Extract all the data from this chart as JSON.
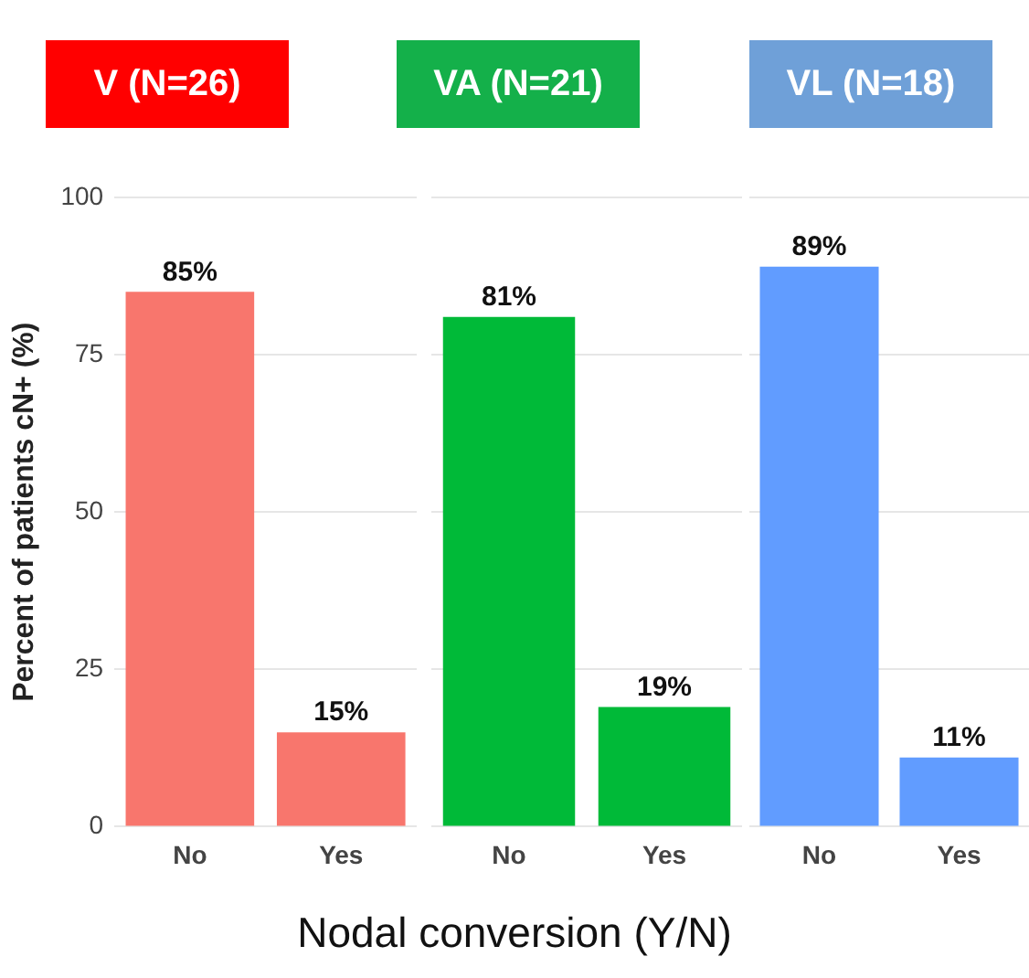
{
  "chart_data": [
    {
      "type": "bar",
      "title": "V (N=26)",
      "ylabel": "Percent of patients cN+ (%)",
      "categories": [
        "No",
        "Yes"
      ],
      "values": [
        85,
        15
      ],
      "value_labels": [
        "85%",
        "15%"
      ],
      "color": "#f8766d",
      "ylim": [
        0,
        100
      ],
      "yticks": [
        0,
        25,
        50,
        75,
        100
      ],
      "grid": "y"
    },
    {
      "type": "bar",
      "title": "VA (N=21)",
      "xlabel": "Nodal conversion (Y/N)",
      "categories": [
        "No",
        "Yes"
      ],
      "values": [
        81,
        19
      ],
      "value_labels": [
        "81%",
        "19%"
      ],
      "color": "#00ba38",
      "ylim": [
        0,
        100
      ],
      "yticks": [
        0,
        25,
        50,
        75,
        100
      ],
      "grid": "y",
      "tick_labels": "x"
    },
    {
      "type": "bar",
      "title": "VL (N=18)",
      "categories": [
        "No",
        "Yes"
      ],
      "values": [
        89,
        11
      ],
      "value_labels": [
        "89%",
        "11%"
      ],
      "color": "#619cff",
      "ylim": [
        0,
        100
      ],
      "yticks": [
        0,
        25,
        50,
        75,
        100
      ],
      "grid": "y",
      "tick_labels": "x"
    }
  ]
}
